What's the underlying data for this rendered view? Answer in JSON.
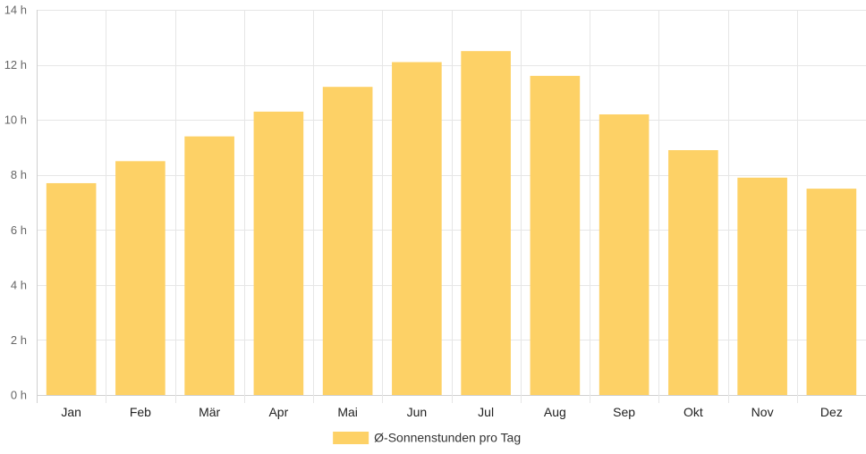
{
  "chart_data": {
    "type": "bar",
    "categories": [
      "Jan",
      "Feb",
      "Mär",
      "Apr",
      "Mai",
      "Jun",
      "Jul",
      "Aug",
      "Sep",
      "Okt",
      "Nov",
      "Dez"
    ],
    "series": [
      {
        "name": "Ø-Sonnenstunden pro Tag",
        "values": [
          7.7,
          8.5,
          9.4,
          10.3,
          11.2,
          12.1,
          12.5,
          11.6,
          10.2,
          8.9,
          7.9,
          7.5
        ],
        "color": "#fdd166"
      }
    ],
    "title": "",
    "xlabel": "",
    "ylabel": "",
    "ylim": [
      0,
      14
    ],
    "yticks": [
      0,
      2,
      4,
      6,
      8,
      10,
      12,
      14
    ],
    "ytick_suffix": " h",
    "grid": true,
    "legend_position": "bottom"
  }
}
